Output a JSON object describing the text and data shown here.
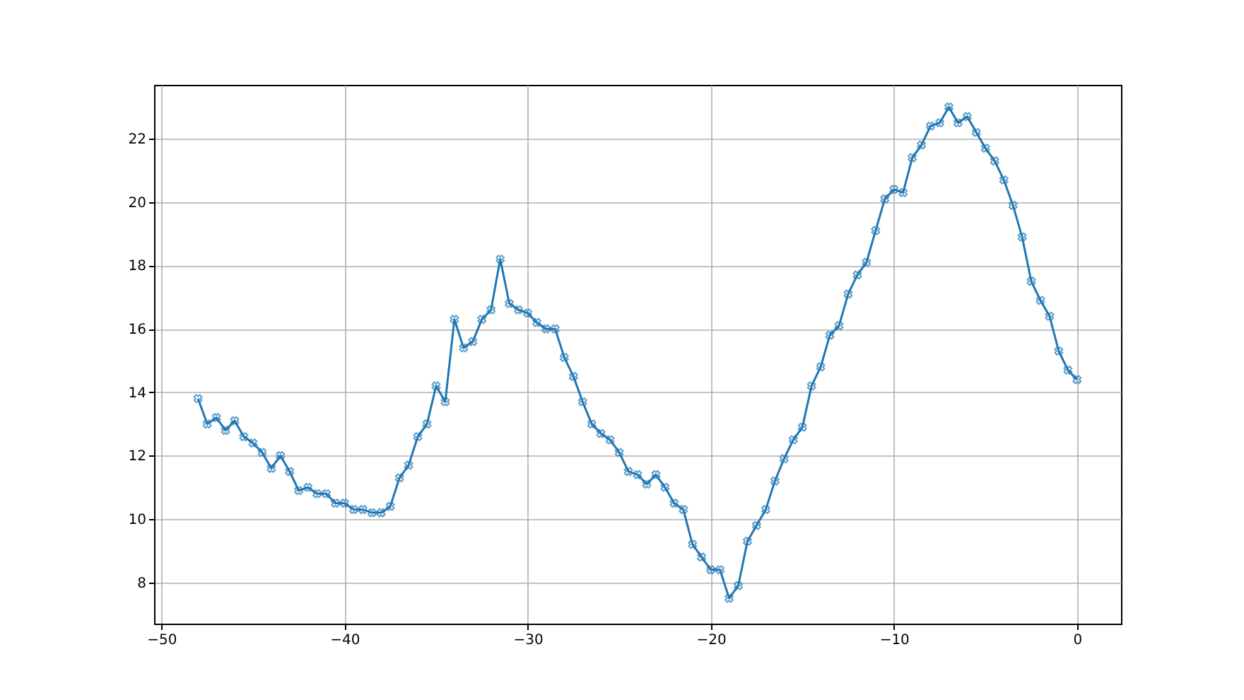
{
  "chart_data": {
    "type": "line",
    "x": [
      -48,
      -47.5,
      -47,
      -46.5,
      -46,
      -45.5,
      -45,
      -44.5,
      -44,
      -43.5,
      -43,
      -42.5,
      -42,
      -41.5,
      -41,
      -40.5,
      -40,
      -39.5,
      -39,
      -38.5,
      -38,
      -37.5,
      -37,
      -36.5,
      -36,
      -35.5,
      -35,
      -34.5,
      -34,
      -33.5,
      -33,
      -32.5,
      -32,
      -31.5,
      -31,
      -30.5,
      -30,
      -29.5,
      -29,
      -28.5,
      -28,
      -27.5,
      -27,
      -26.5,
      -26,
      -25.5,
      -25,
      -24.5,
      -24,
      -23.5,
      -23,
      -22.5,
      -22,
      -21.5,
      -21,
      -20.5,
      -20,
      -19.5,
      -19,
      -18.5,
      -18,
      -17.5,
      -17,
      -16.5,
      -16,
      -15.5,
      -15,
      -14.5,
      -14,
      -13.5,
      -13,
      -12.5,
      -12,
      -11.5,
      -11,
      -10.5,
      -10,
      -9.5,
      -9,
      -8.5,
      -8,
      -7.5,
      -7,
      -6.5,
      -6,
      -5.5,
      -5,
      -4.5,
      -4,
      -3.5,
      -3,
      -2.5,
      -2,
      -1.5,
      -1,
      -0.5,
      0
    ],
    "series": [
      {
        "color": "#1f77b4",
        "values": [
          13.8,
          13.0,
          13.2,
          12.8,
          13.1,
          12.6,
          12.4,
          12.1,
          11.6,
          12.0,
          11.5,
          10.9,
          11.0,
          10.8,
          10.8,
          10.5,
          10.5,
          10.3,
          10.3,
          10.2,
          10.2,
          10.4,
          11.3,
          11.7,
          12.6,
          13.0,
          14.2,
          13.7,
          16.3,
          15.4,
          15.6,
          16.3,
          16.6,
          18.2,
          16.8,
          16.6,
          16.5,
          16.2,
          16.0,
          16.0,
          15.1,
          14.5,
          13.7,
          13.0,
          12.7,
          12.5,
          12.1,
          11.5,
          11.4,
          11.1,
          11.4,
          11.0,
          10.5,
          10.3,
          9.2,
          8.8,
          8.4,
          8.4,
          7.5,
          7.9,
          9.3,
          9.8,
          10.3,
          11.2,
          11.9,
          12.5,
          12.9,
          14.2,
          14.8,
          15.8,
          16.1,
          17.1,
          17.7,
          18.1,
          19.1,
          20.1,
          20.4,
          20.3,
          21.4,
          21.8,
          22.4,
          22.5,
          23.0,
          22.5,
          22.7,
          22.2,
          21.7,
          21.3,
          20.7,
          19.9,
          18.9,
          17.5,
          16.9,
          16.4,
          15.3,
          14.7,
          14.4
        ]
      }
    ],
    "xlim": [
      -50.4,
      2.4
    ],
    "xticks": [
      -50,
      -40,
      -30,
      -20,
      -10,
      0
    ],
    "ylim": [
      6.7,
      23.7
    ],
    "yticks": [
      8,
      10,
      12,
      14,
      16,
      18,
      20,
      22
    ],
    "grid": true,
    "marker": "cross",
    "line_style": "solid"
  }
}
